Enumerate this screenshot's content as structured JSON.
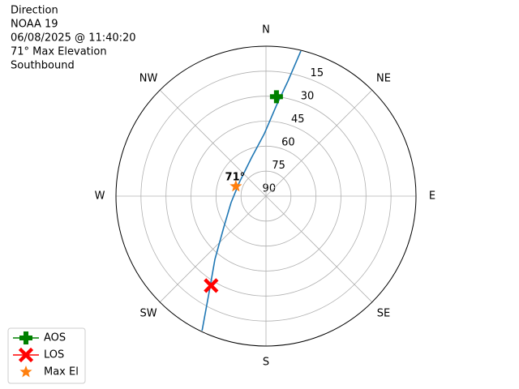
{
  "chart_data": {
    "type": "polar",
    "title_lines": [
      "Direction",
      "NOAA 19",
      "06/08/2025 @ 11:40:20",
      "71° Max Elevation",
      "Southbound"
    ],
    "xticks": [
      {
        "value": 0,
        "label": "N"
      },
      {
        "value": 45,
        "label": "NE"
      },
      {
        "value": 90,
        "label": "E"
      },
      {
        "value": 135,
        "label": "SE"
      },
      {
        "value": 180,
        "label": "S"
      },
      {
        "value": 225,
        "label": "SW"
      },
      {
        "value": 270,
        "label": "W"
      },
      {
        "value": 315,
        "label": "NW"
      }
    ],
    "ylim": [
      90,
      0
    ],
    "yticks": [
      15,
      30,
      45,
      60,
      75,
      90
    ],
    "grid": true,
    "legend": "lower left",
    "annotation": "71°",
    "series": [
      {
        "color": "#1f77b4",
        "marker": "none",
        "line": true,
        "x": [
          13.5,
          10.8,
          6.6,
          358.5,
          339.0,
          297.3,
          259.5,
          233.8,
          218.9,
          210.7,
          205.4
        ],
        "values": [
          0.4,
          19.7,
          35.1,
          52.5,
          65.5,
          72.0,
          68.7,
          58.7,
          41.2,
          23.3,
          0.6
        ]
      },
      {
        "name": "AOS",
        "color": "#008000",
        "marker": "plus",
        "line": true,
        "x": [
          6
        ],
        "values": [
          30
        ]
      },
      {
        "name": "LOS",
        "color": "#ff0000",
        "marker": "x",
        "line": true,
        "x": [
          211.5
        ],
        "values": [
          27
        ]
      },
      {
        "name": "Max El",
        "color": "#ff7f0e",
        "marker": "star",
        "line": false,
        "x": [
          288
        ],
        "values": [
          71
        ]
      }
    ]
  }
}
